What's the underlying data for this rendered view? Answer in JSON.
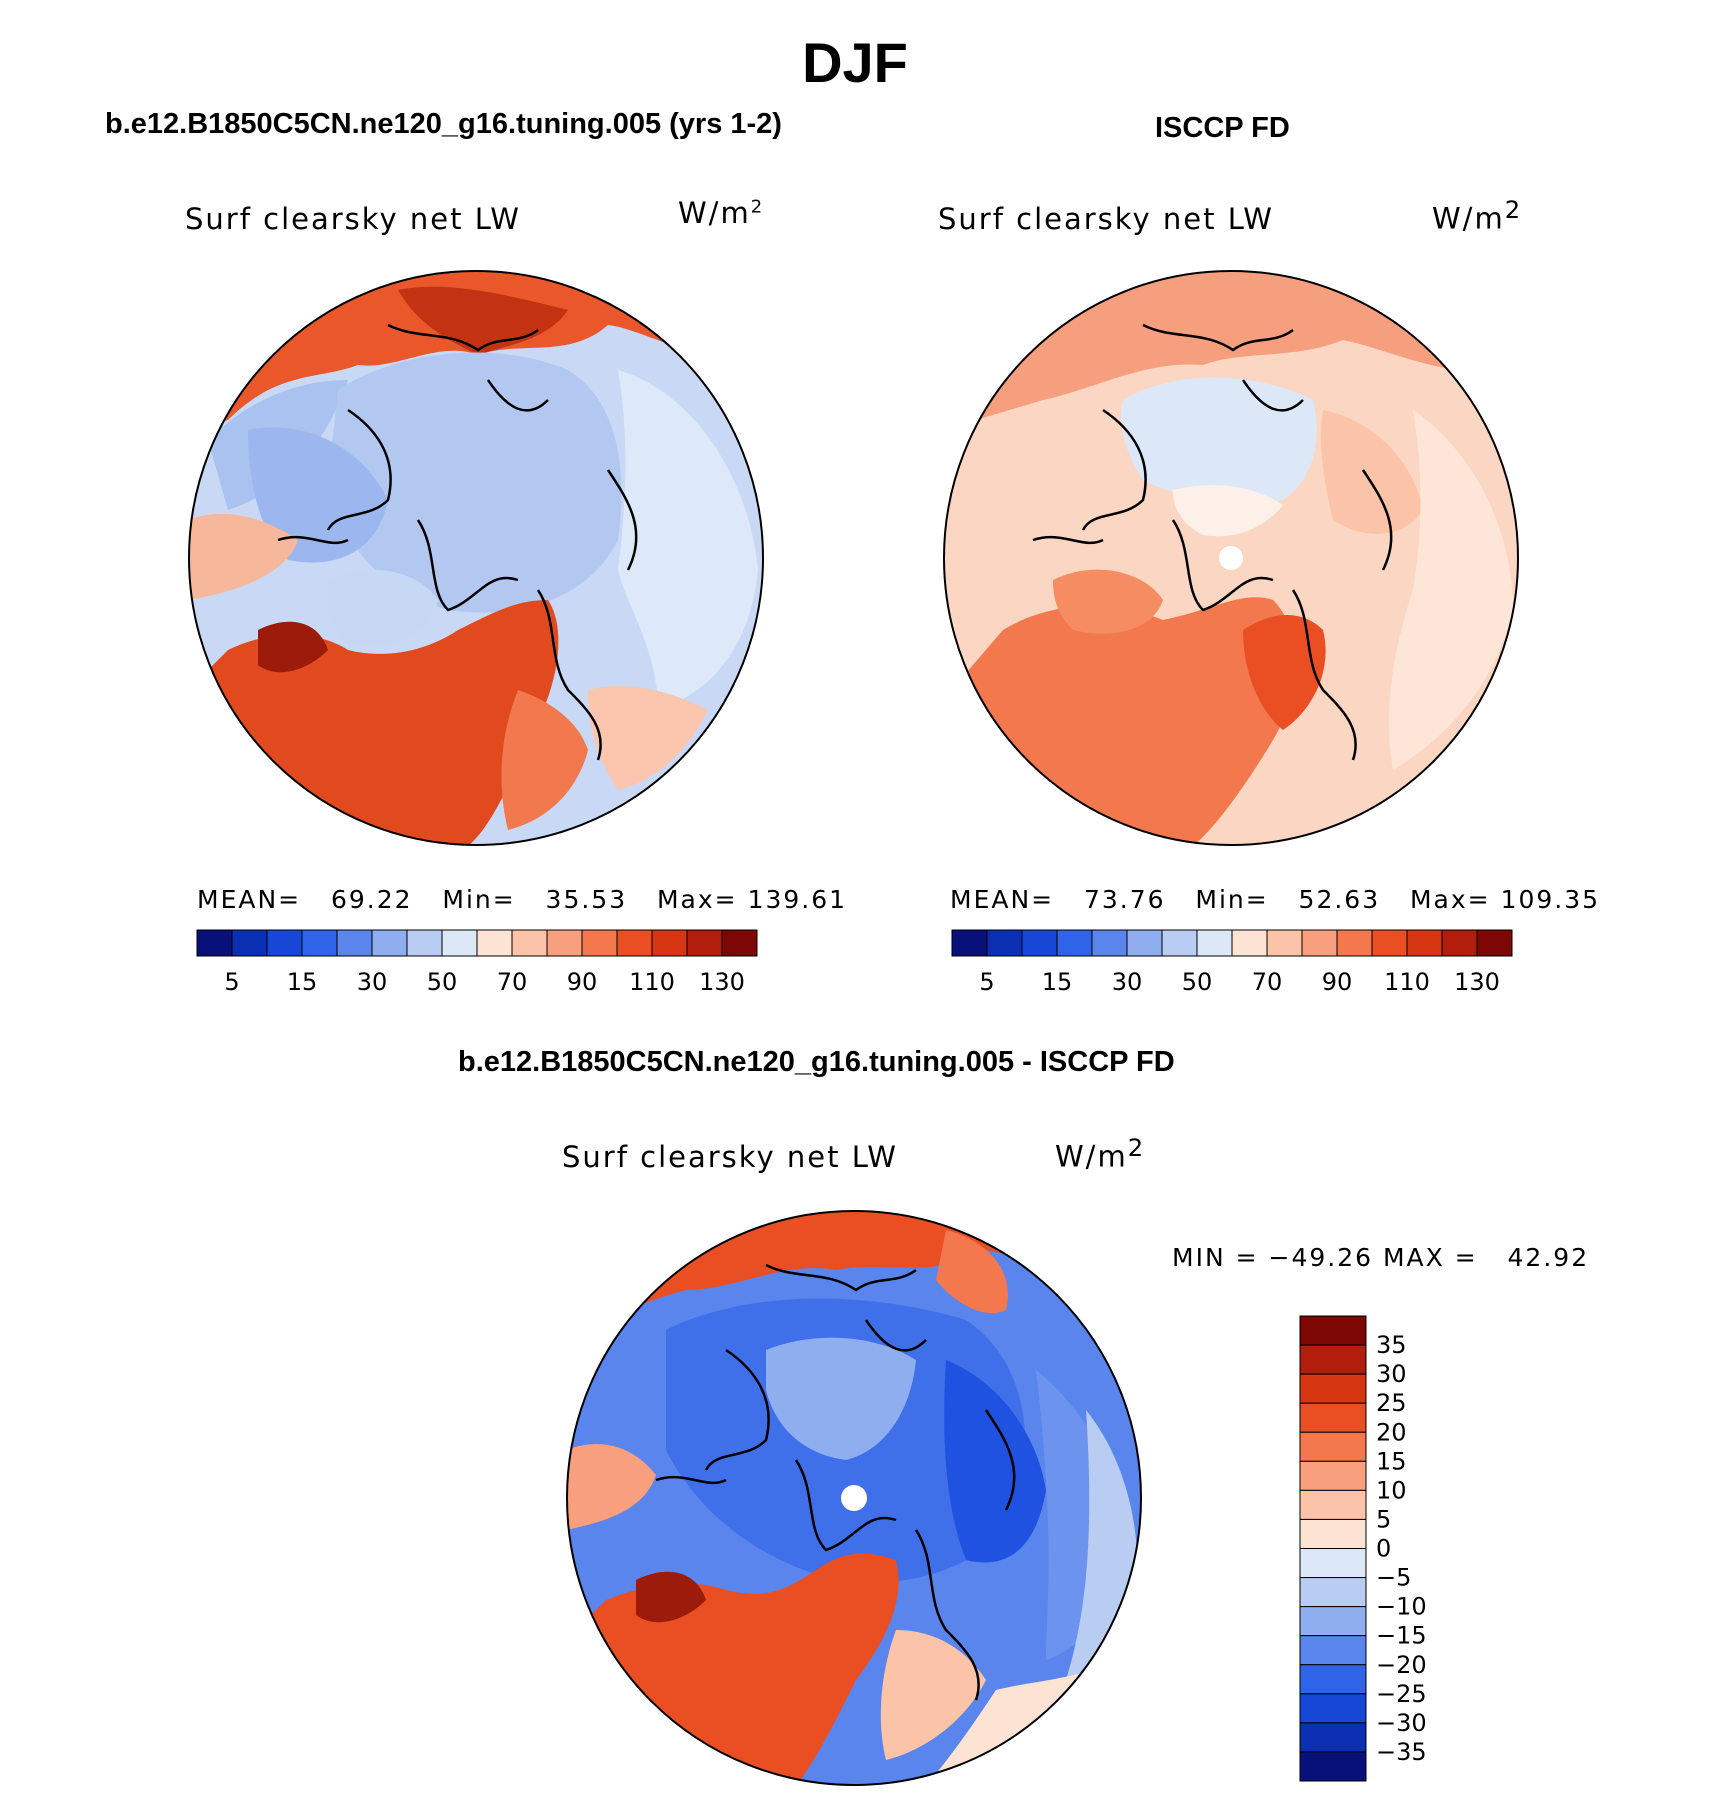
{
  "main_title": "DJF",
  "panels": [
    {
      "title": "b.e12.B1850C5CN.ne120_g16.tuning.005 (yrs 1-2)",
      "variable": "Surf clearsky net LW",
      "units_base": "W/m",
      "units_exp": "2",
      "stats": {
        "mean_label": "MEAN=",
        "mean": "69.22",
        "min_label": "Min=",
        "min": "35.53",
        "max_label": "Max=",
        "max": "139.61"
      }
    },
    {
      "title": "ISCCP FD",
      "variable": "Surf clearsky net LW",
      "units_base": "W/m",
      "units_exp": "2",
      "stats": {
        "mean_label": "MEAN=",
        "mean": "73.76",
        "min_label": "Min=",
        "min": "52.63",
        "max_label": "Max=",
        "max": "109.35"
      }
    },
    {
      "title": "b.e12.B1850C5CN.ne120_g16.tuning.005 - ISCCP FD",
      "variable": "Surf clearsky net LW",
      "units_base": "W/m",
      "units_exp": "2",
      "stats": {
        "min_label": "MIN =",
        "min": "−49.26",
        "max_label": "MAX =",
        "max": "42.92"
      }
    }
  ],
  "colorbar_abs": {
    "colors": [
      "#08107a",
      "#0a2fb3",
      "#1647d6",
      "#2f63e8",
      "#5a85ec",
      "#8eaef0",
      "#b9cdf3",
      "#dce8f8",
      "#fde3d3",
      "#fbc3a8",
      "#f89f7d",
      "#f3784e",
      "#ea4f24",
      "#d73612",
      "#b21e0c",
      "#7d0705"
    ],
    "labels": [
      "5",
      "15",
      "30",
      "50",
      "70",
      "90",
      "110",
      "130"
    ]
  },
  "colorbar_diff": {
    "colors": [
      "#7d0705",
      "#b21e0c",
      "#d73612",
      "#ea4f24",
      "#f3784e",
      "#f89f7d",
      "#fbc3a8",
      "#fde3d3",
      "#dce8f8",
      "#b9cdf3",
      "#8eaef0",
      "#5a85ec",
      "#2f63e8",
      "#1647d6",
      "#0a2fb3",
      "#08107a"
    ],
    "labels": [
      "35",
      "30",
      "25",
      "20",
      "15",
      "10",
      "5",
      "0",
      "−5",
      "−10",
      "−15",
      "−20",
      "−25",
      "−30",
      "−35"
    ]
  },
  "maps": [
    {
      "background": "#c9d9f5",
      "regions": [
        {
          "name": "north-pacific-band",
          "color": "#e9572a"
        },
        {
          "name": "bering-dark",
          "color": "#c33312"
        },
        {
          "name": "siberia-light",
          "color": "#a9c2f0"
        },
        {
          "name": "arctic-core",
          "color": "#b3c8f1"
        },
        {
          "name": "eurasia-ring",
          "color": "#dde9f8"
        },
        {
          "name": "canada-blue",
          "color": "#9cb7ef"
        },
        {
          "name": "alaska-salmon",
          "color": "#f7b79b"
        },
        {
          "name": "atlantic-red",
          "color": "#e04a1e"
        },
        {
          "name": "greenland-dark",
          "color": "#9c1b0b"
        },
        {
          "name": "greenland-blue",
          "color": "#c7d8f5"
        },
        {
          "name": "europe-orange",
          "color": "#f2794d"
        },
        {
          "name": "europe-peach",
          "color": "#fbc6ad"
        }
      ]
    },
    {
      "background": "#fbd6c3",
      "regions": [
        {
          "name": "pacific-band",
          "color": "#f59f7f"
        },
        {
          "name": "arctic-core",
          "color": "#dce8f8"
        },
        {
          "name": "central-white",
          "color": "#fdf0e8"
        },
        {
          "name": "atlantic-orange",
          "color": "#f3784e"
        },
        {
          "name": "greenland-orange",
          "color": "#f68c62"
        },
        {
          "name": "norway-red",
          "color": "#ea4f24"
        },
        {
          "name": "siberia-peach",
          "color": "#fbc3a8"
        },
        {
          "name": "eurasia-light",
          "color": "#fde6d8"
        }
      ]
    },
    {
      "background": "#5a85ec",
      "regions": [
        {
          "name": "pacific-band",
          "color": "#ea4f24"
        },
        {
          "name": "bering-red",
          "color": "#f3784e"
        },
        {
          "name": "arctic-blue",
          "color": "#3f6fe9"
        },
        {
          "name": "central-light",
          "color": "#8eaef0"
        },
        {
          "name": "siberia-deep",
          "color": "#1f52e0"
        },
        {
          "name": "eurasia-mid",
          "color": "#6c94ee"
        },
        {
          "name": "eurasia-light",
          "color": "#b9cdf3"
        },
        {
          "name": "alaska-salmon",
          "color": "#f89f7d"
        },
        {
          "name": "atlantic-red",
          "color": "#ea4f24"
        },
        {
          "name": "greenland-dark",
          "color": "#9c1b0b"
        },
        {
          "name": "europe-peach",
          "color": "#fbc3a8"
        },
        {
          "name": "outer-peach",
          "color": "#fde3d3"
        }
      ]
    }
  ]
}
